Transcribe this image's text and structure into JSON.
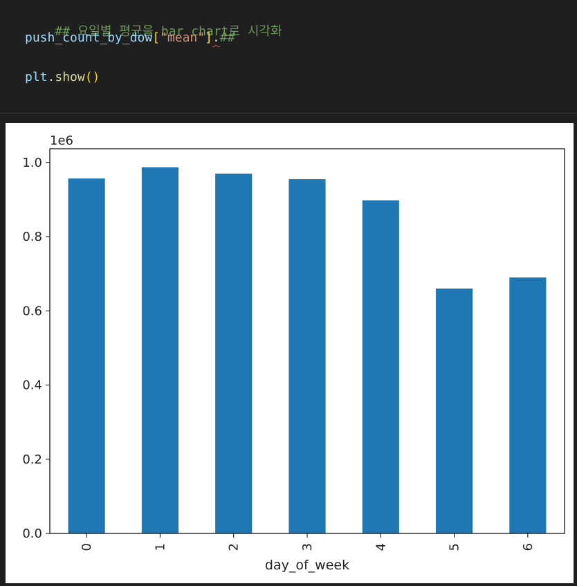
{
  "code": {
    "comment_line": "## 요일별 평균을 bar chart로 시각화",
    "line2_var": "push_count_by_dow",
    "line2_open": "[",
    "line2_key": "\"mean\"",
    "line2_close": "]",
    "line2_dot": ".",
    "line2_trail": "##",
    "line4_obj": "plt",
    "line4_dot": ".",
    "line4_fn": "show",
    "line4_parens": "()"
  },
  "chart_data": {
    "type": "bar",
    "categories": [
      "0",
      "1",
      "2",
      "3",
      "4",
      "5",
      "6"
    ],
    "values": [
      957000,
      987000,
      970000,
      955000,
      898000,
      660000,
      690000
    ],
    "xlabel": "day_of_week",
    "ylabel": "",
    "offset_label": "1e6",
    "ylim": [
      0,
      1037000
    ],
    "yticks": [
      0,
      200000,
      400000,
      600000,
      800000,
      1000000
    ],
    "ytick_labels": [
      "0.0",
      "0.2",
      "0.4",
      "0.6",
      "0.8",
      "1.0"
    ],
    "xtick_rotation": 90,
    "bar_color": "#1f77b4",
    "grid": false,
    "legend": false
  }
}
